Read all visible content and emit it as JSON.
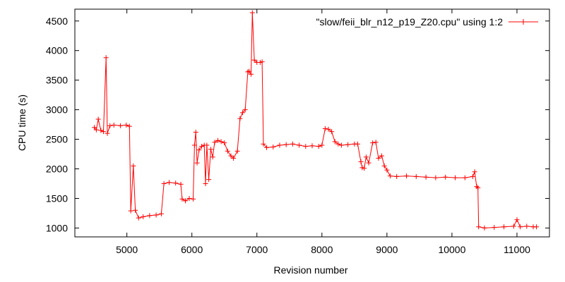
{
  "chart_data": {
    "type": "line",
    "xlabel": "Revision number",
    "ylabel": "CPU time (s)",
    "xlim": [
      4200,
      11500
    ],
    "ylim": [
      850,
      4700
    ],
    "xticks": [
      5000,
      6000,
      7000,
      8000,
      9000,
      10000,
      11000
    ],
    "yticks": [
      1000,
      1500,
      2000,
      2500,
      3000,
      3500,
      4000,
      4500
    ],
    "grid": false,
    "legend_position": "top-right",
    "series": [
      {
        "name": "\"slow/feii_blr_n12_p19_Z20.cpu\" using 1:2",
        "color": "#ff0000",
        "marker": "plus",
        "points": [
          [
            4500,
            2700
          ],
          [
            4530,
            2660
          ],
          [
            4560,
            2840
          ],
          [
            4600,
            2650
          ],
          [
            4640,
            2630
          ],
          [
            4680,
            3880
          ],
          [
            4700,
            2600
          ],
          [
            4740,
            2730
          ],
          [
            4800,
            2740
          ],
          [
            4900,
            2730
          ],
          [
            4990,
            2740
          ],
          [
            5040,
            2720
          ],
          [
            5060,
            1290
          ],
          [
            5100,
            2050
          ],
          [
            5130,
            1300
          ],
          [
            5180,
            1170
          ],
          [
            5250,
            1190
          ],
          [
            5350,
            1210
          ],
          [
            5450,
            1220
          ],
          [
            5530,
            1240
          ],
          [
            5570,
            1750
          ],
          [
            5650,
            1770
          ],
          [
            5750,
            1760
          ],
          [
            5830,
            1740
          ],
          [
            5850,
            1490
          ],
          [
            5900,
            1460
          ],
          [
            5960,
            1500
          ],
          [
            6020,
            1490
          ],
          [
            6040,
            2400
          ],
          [
            6060,
            2620
          ],
          [
            6080,
            2100
          ],
          [
            6110,
            2320
          ],
          [
            6150,
            2380
          ],
          [
            6190,
            2400
          ],
          [
            6210,
            1750
          ],
          [
            6230,
            2400
          ],
          [
            6260,
            1820
          ],
          [
            6290,
            2330
          ],
          [
            6320,
            2200
          ],
          [
            6350,
            2450
          ],
          [
            6400,
            2480
          ],
          [
            6450,
            2460
          ],
          [
            6500,
            2440
          ],
          [
            6550,
            2300
          ],
          [
            6600,
            2220
          ],
          [
            6640,
            2180
          ],
          [
            6700,
            2300
          ],
          [
            6740,
            2850
          ],
          [
            6780,
            2950
          ],
          [
            6820,
            3000
          ],
          [
            6860,
            3640
          ],
          [
            6880,
            3650
          ],
          [
            6910,
            3600
          ],
          [
            6930,
            4640
          ],
          [
            6960,
            3840
          ],
          [
            7000,
            3800
          ],
          [
            7050,
            3800
          ],
          [
            7080,
            3810
          ],
          [
            7100,
            2420
          ],
          [
            7150,
            2360
          ],
          [
            7250,
            2370
          ],
          [
            7350,
            2400
          ],
          [
            7450,
            2410
          ],
          [
            7550,
            2420
          ],
          [
            7650,
            2400
          ],
          [
            7750,
            2380
          ],
          [
            7850,
            2390
          ],
          [
            7950,
            2380
          ],
          [
            8000,
            2400
          ],
          [
            8050,
            2680
          ],
          [
            8100,
            2670
          ],
          [
            8150,
            2630
          ],
          [
            8200,
            2460
          ],
          [
            8250,
            2420
          ],
          [
            8300,
            2400
          ],
          [
            8400,
            2410
          ],
          [
            8500,
            2420
          ],
          [
            8550,
            2420
          ],
          [
            8600,
            2120
          ],
          [
            8620,
            2020
          ],
          [
            8650,
            2010
          ],
          [
            8680,
            2200
          ],
          [
            8720,
            2100
          ],
          [
            8780,
            2440
          ],
          [
            8830,
            2450
          ],
          [
            8870,
            2180
          ],
          [
            8920,
            2220
          ],
          [
            8960,
            2050
          ],
          [
            9000,
            1980
          ],
          [
            9050,
            1880
          ],
          [
            9150,
            1870
          ],
          [
            9300,
            1880
          ],
          [
            9450,
            1870
          ],
          [
            9600,
            1860
          ],
          [
            9750,
            1850
          ],
          [
            9900,
            1860
          ],
          [
            10050,
            1850
          ],
          [
            10200,
            1850
          ],
          [
            10320,
            1870
          ],
          [
            10350,
            1950
          ],
          [
            10380,
            1700
          ],
          [
            10400,
            1680
          ],
          [
            10410,
            1020
          ],
          [
            10500,
            1000
          ],
          [
            10650,
            1010
          ],
          [
            10800,
            1020
          ],
          [
            10950,
            1030
          ],
          [
            11000,
            1140
          ],
          [
            11050,
            1020
          ],
          [
            11150,
            1030
          ],
          [
            11250,
            1020
          ],
          [
            11300,
            1020
          ]
        ]
      }
    ]
  }
}
